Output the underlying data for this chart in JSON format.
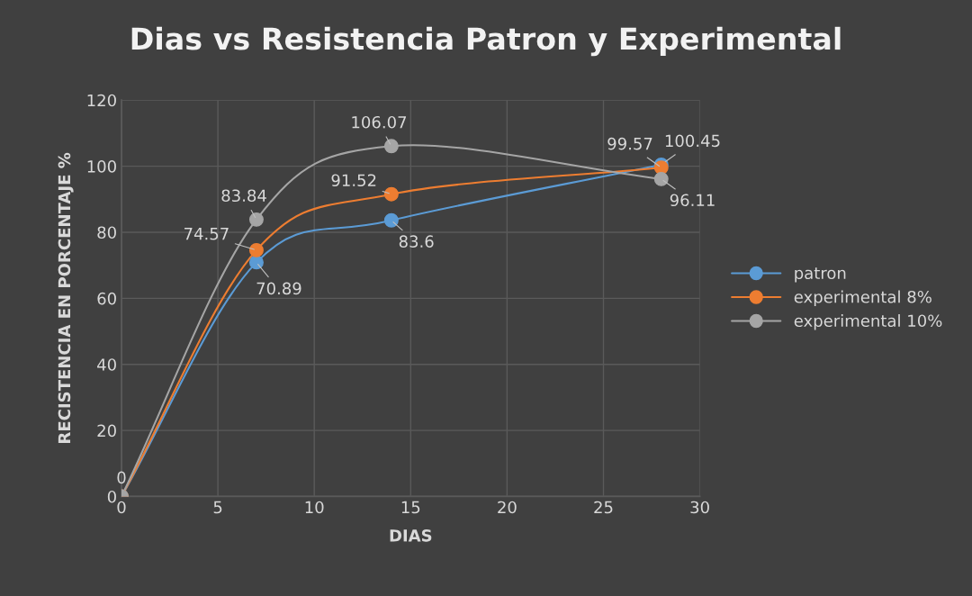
{
  "chart_data": {
    "type": "line",
    "title": "Dias vs Resistencia Patron y Experimental",
    "xlabel": "DIAS",
    "ylabel": "RECISTENCIA EN PORCENTAJE %",
    "x": [
      0,
      7,
      14,
      28
    ],
    "series": [
      {
        "name": "patron",
        "color": "#5b9bd5",
        "values": [
          0,
          70.89,
          83.6,
          100.45
        ],
        "value_labels": [
          "0",
          "70.89",
          "83.6",
          "100.45"
        ]
      },
      {
        "name": "experimental 8%",
        "color": "#ed7d31",
        "values": [
          0,
          74.57,
          91.52,
          99.57
        ],
        "value_labels": [
          null,
          "74.57",
          "91.52",
          "99.57"
        ]
      },
      {
        "name": "experimental 10%",
        "color": "#a5a5a5",
        "values": [
          0,
          83.84,
          106.07,
          96.11
        ],
        "value_labels": [
          null,
          "83.84",
          "106.07",
          "96.11"
        ]
      }
    ],
    "xlim": [
      0,
      30
    ],
    "xticks": [
      0,
      5,
      10,
      15,
      20,
      25,
      30
    ],
    "ylim": [
      0,
      120
    ],
    "yticks": [
      0,
      20,
      40,
      60,
      80,
      100,
      120
    ],
    "grid": true,
    "legend": "right",
    "marker": "circle",
    "line_style": "solid"
  }
}
